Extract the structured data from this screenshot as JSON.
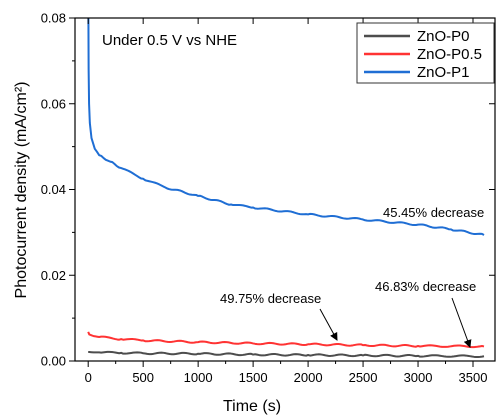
{
  "chart_data": {
    "type": "line",
    "xlabel": "Time (s)",
    "ylabel": "Photocurrent density (mA/cm²)",
    "xlim": [
      -120,
      3700
    ],
    "ylim": [
      0,
      0.08
    ],
    "x_ticks": [
      0,
      500,
      1000,
      1500,
      2000,
      2500,
      3000,
      3500
    ],
    "y_ticks": [
      0.0,
      0.02,
      0.04,
      0.06,
      0.08
    ],
    "y_tick_labels": [
      "0.00",
      "0.02",
      "0.04",
      "0.06",
      "0.08"
    ],
    "x_tick_labels": [
      "0",
      "500",
      "1000",
      "1500",
      "2000",
      "2500",
      "3000",
      "3500"
    ],
    "condition_text": "Under 0.5 V vs NHE",
    "legend_placement": "top-right",
    "series": [
      {
        "name": "ZnO-P0",
        "color": "#4d4d4d",
        "x": [
          0,
          10,
          50,
          100,
          300,
          500,
          1000,
          1500,
          2000,
          2500,
          3000,
          3600
        ],
        "y": [
          0.0021,
          0.0021,
          0.002,
          0.002,
          0.0019,
          0.0018,
          0.0017,
          0.0015,
          0.0014,
          0.0013,
          0.0012,
          0.0011
        ]
      },
      {
        "name": "ZnO-P0.5",
        "color": "#ff3333",
        "x": [
          0,
          10,
          50,
          100,
          300,
          500,
          1000,
          1500,
          2000,
          2500,
          3000,
          3600
        ],
        "y": [
          0.0068,
          0.0062,
          0.0058,
          0.0056,
          0.0051,
          0.0048,
          0.0044,
          0.0041,
          0.0039,
          0.0037,
          0.0035,
          0.0034
        ]
      },
      {
        "name": "ZnO-P1",
        "color": "#1f6ed4",
        "x": [
          0,
          2,
          4,
          8,
          15,
          30,
          60,
          100,
          200,
          300,
          500,
          700,
          1000,
          1300,
          1500,
          2000,
          2500,
          3000,
          3300,
          3600
        ],
        "y": [
          0.08,
          0.08,
          0.068,
          0.06,
          0.0555,
          0.052,
          0.0495,
          0.048,
          0.0465,
          0.045,
          0.0425,
          0.0405,
          0.0385,
          0.0365,
          0.0358,
          0.0342,
          0.033,
          0.0318,
          0.0307,
          0.0294
        ]
      }
    ],
    "annotations": [
      {
        "text": "45.45% decrease"
      },
      {
        "text": "49.75% decrease"
      },
      {
        "text": "46.83% decrease"
      }
    ]
  }
}
